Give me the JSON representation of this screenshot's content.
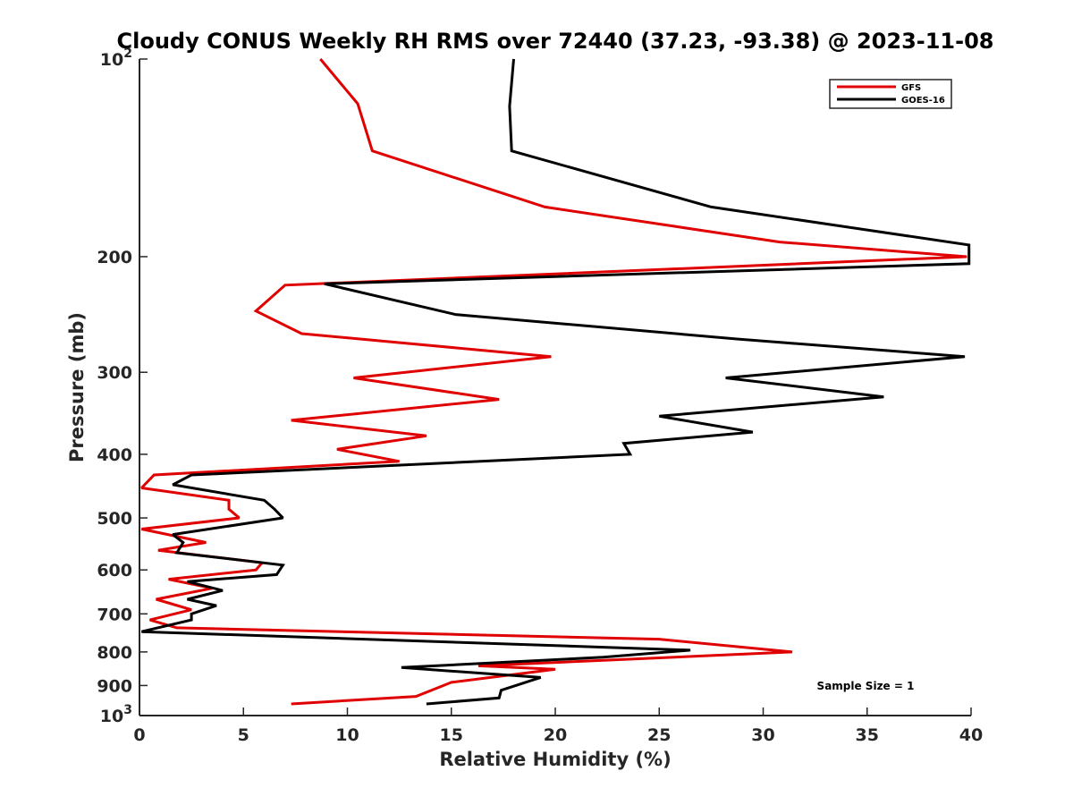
{
  "chart_data": {
    "type": "line",
    "title": "Cloudy CONUS Weekly RH RMS over 72440 (37.23, -93.38) @ 2023-11-08",
    "xlabel": "Relative Humidity (%)",
    "ylabel": "Pressure (mb)",
    "xlim": [
      0,
      40
    ],
    "ylim": [
      100,
      1000
    ],
    "y_scale": "log",
    "y_reversed": true,
    "grid": false,
    "legend_position": "top-right",
    "annotation": "Sample Size = 1",
    "x_ticks": [
      "0",
      "5",
      "10",
      "15",
      "20",
      "25",
      "30",
      "35",
      "40"
    ],
    "x_tick_values": [
      0,
      5,
      10,
      15,
      20,
      25,
      30,
      35,
      40
    ],
    "y_ticks": [
      {
        "value": 100,
        "base": "10",
        "exp": "2"
      },
      {
        "value": 200,
        "label": "200"
      },
      {
        "value": 300,
        "label": "300"
      },
      {
        "value": 400,
        "label": "400"
      },
      {
        "value": 500,
        "label": "500"
      },
      {
        "value": 600,
        "label": "600"
      },
      {
        "value": 700,
        "label": "700"
      },
      {
        "value": 800,
        "label": "800"
      },
      {
        "value": 900,
        "label": "900"
      },
      {
        "value": 1000,
        "base": "10",
        "exp": "3"
      }
    ],
    "series": [
      {
        "name": "GFS",
        "color": "#e00000",
        "points": [
          [
            8.7,
            100
          ],
          [
            10.5,
            117
          ],
          [
            11.2,
            138
          ],
          [
            19.5,
            168
          ],
          [
            30.8,
            190
          ],
          [
            39.8,
            200
          ],
          [
            7.0,
            221
          ],
          [
            5.6,
            242
          ],
          [
            7.8,
            262
          ],
          [
            19.8,
            284
          ],
          [
            10.3,
            306
          ],
          [
            17.3,
            330
          ],
          [
            7.3,
            355
          ],
          [
            13.8,
            375
          ],
          [
            9.5,
            393
          ],
          [
            12.5,
            410
          ],
          [
            0.7,
            430
          ],
          [
            0.1,
            450
          ],
          [
            4.3,
            470
          ],
          [
            4.3,
            485
          ],
          [
            4.8,
            500
          ],
          [
            0.1,
            520
          ],
          [
            3.2,
            545
          ],
          [
            0.9,
            560
          ],
          [
            5.9,
            585
          ],
          [
            5.6,
            600
          ],
          [
            1.4,
            620
          ],
          [
            3.5,
            640
          ],
          [
            0.8,
            665
          ],
          [
            2.5,
            690
          ],
          [
            0.5,
            715
          ],
          [
            1.8,
            735
          ],
          [
            25.0,
            765
          ],
          [
            31.4,
            800
          ],
          [
            16.3,
            840
          ],
          [
            20.0,
            850
          ],
          [
            15.0,
            890
          ],
          [
            13.3,
            935
          ],
          [
            7.3,
            960
          ]
        ]
      },
      {
        "name": "GOES-16",
        "color": "#000000",
        "points": [
          [
            18.0,
            100
          ],
          [
            17.8,
            118
          ],
          [
            17.9,
            138
          ],
          [
            27.5,
            168
          ],
          [
            39.9,
            192
          ],
          [
            39.9,
            205
          ],
          [
            8.9,
            220
          ],
          [
            15.2,
            245
          ],
          [
            28.8,
            267
          ],
          [
            39.7,
            284
          ],
          [
            28.2,
            306
          ],
          [
            35.8,
            327
          ],
          [
            25.0,
            350
          ],
          [
            29.5,
            370
          ],
          [
            23.3,
            385
          ],
          [
            23.6,
            400
          ],
          [
            2.5,
            430
          ],
          [
            1.6,
            445
          ],
          [
            6.0,
            470
          ],
          [
            6.5,
            485
          ],
          [
            6.9,
            500
          ],
          [
            1.6,
            530
          ],
          [
            2.1,
            545
          ],
          [
            1.8,
            565
          ],
          [
            6.9,
            590
          ],
          [
            6.6,
            610
          ],
          [
            2.3,
            625
          ],
          [
            4.0,
            645
          ],
          [
            2.3,
            665
          ],
          [
            3.7,
            680
          ],
          [
            2.5,
            700
          ],
          [
            2.5,
            715
          ],
          [
            0.1,
            745
          ],
          [
            26.5,
            795
          ],
          [
            22.3,
            815
          ],
          [
            12.6,
            845
          ],
          [
            19.3,
            875
          ],
          [
            18.1,
            900
          ],
          [
            17.4,
            915
          ],
          [
            17.3,
            940
          ],
          [
            13.8,
            960
          ]
        ]
      }
    ]
  }
}
